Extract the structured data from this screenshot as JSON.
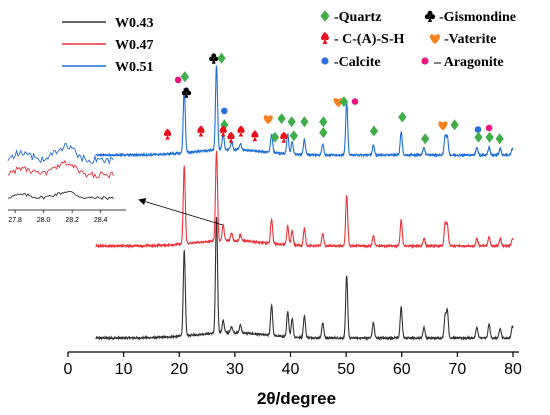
{
  "chart_data": {
    "type": "line",
    "title": "",
    "xlabel": "2θ/degree",
    "ylabel": "",
    "xlim": [
      0,
      80
    ],
    "x_ticks": [
      0,
      10,
      20,
      30,
      40,
      50,
      60,
      70,
      80
    ],
    "grid": false,
    "legend_placement": "top-left",
    "series": [
      {
        "name": "W0.43",
        "color": "#333333",
        "offset": 0,
        "peaks": [
          [
            20.9,
            0.55
          ],
          [
            26.7,
            0.75
          ],
          [
            27.9,
            0.08
          ],
          [
            29.4,
            0.04
          ],
          [
            31.0,
            0.05
          ],
          [
            36.6,
            0.2
          ],
          [
            39.5,
            0.16
          ],
          [
            40.3,
            0.12
          ],
          [
            42.5,
            0.14
          ],
          [
            45.8,
            0.1
          ],
          [
            50.1,
            0.4
          ],
          [
            54.9,
            0.1
          ],
          [
            59.9,
            0.2
          ],
          [
            64.0,
            0.07
          ],
          [
            67.8,
            0.14
          ],
          [
            68.2,
            0.17
          ],
          [
            73.5,
            0.07
          ],
          [
            75.7,
            0.09
          ],
          [
            77.7,
            0.06
          ],
          [
            79.9,
            0.08
          ]
        ]
      },
      {
        "name": "W0.47",
        "color": "#e8343a",
        "offset": 1,
        "peaks": [
          [
            20.9,
            0.5
          ],
          [
            26.7,
            0.58
          ],
          [
            27.9,
            0.1
          ],
          [
            29.4,
            0.05
          ],
          [
            31.0,
            0.04
          ],
          [
            36.6,
            0.16
          ],
          [
            39.5,
            0.12
          ],
          [
            40.3,
            0.09
          ],
          [
            42.5,
            0.11
          ],
          [
            45.8,
            0.08
          ],
          [
            50.1,
            0.33
          ],
          [
            54.9,
            0.07
          ],
          [
            59.9,
            0.17
          ],
          [
            64.0,
            0.05
          ],
          [
            67.8,
            0.14
          ],
          [
            68.2,
            0.13
          ],
          [
            73.5,
            0.05
          ],
          [
            75.7,
            0.06
          ],
          [
            77.7,
            0.05
          ],
          [
            79.9,
            0.05
          ]
        ]
      },
      {
        "name": "W0.51",
        "color": "#1f6fd6",
        "offset": 2,
        "peaks": [
          [
            20.9,
            0.42
          ],
          [
            26.7,
            0.55
          ],
          [
            27.9,
            0.1
          ],
          [
            29.4,
            0.05
          ],
          [
            31.0,
            0.04
          ],
          [
            36.6,
            0.12
          ],
          [
            39.5,
            0.13
          ],
          [
            40.3,
            0.08
          ],
          [
            42.5,
            0.1
          ],
          [
            45.8,
            0.07
          ],
          [
            50.1,
            0.34
          ],
          [
            54.9,
            0.06
          ],
          [
            59.9,
            0.15
          ],
          [
            64.0,
            0.05
          ],
          [
            67.8,
            0.12
          ],
          [
            68.2,
            0.11
          ],
          [
            73.5,
            0.05
          ],
          [
            75.7,
            0.05
          ],
          [
            77.7,
            0.04
          ],
          [
            79.9,
            0.04
          ]
        ]
      }
    ],
    "phase_legend": [
      {
        "symbol": "diamond",
        "color": "#3fae49",
        "label": "-Quartz"
      },
      {
        "symbol": "club",
        "color": "#000000",
        "label": "-Gismondine"
      },
      {
        "symbol": "spade",
        "color": "#e8111e",
        "label": "- C-(A)-S-H"
      },
      {
        "symbol": "heart",
        "color": "#f5821f",
        "label": "-Vaterite"
      },
      {
        "symbol": "circle",
        "color": "#2a6fdb",
        "label": "-Calcite"
      },
      {
        "symbol": "circle",
        "color": "#e8157f",
        "label": "– Aragonite"
      }
    ],
    "annotations": [
      {
        "symbol": "diamond",
        "x": 21.0,
        "level": 0.44
      },
      {
        "symbol": "circle-pink",
        "x": 19.8,
        "level": 0.42
      },
      {
        "symbol": "club",
        "x": 21.3,
        "level": 0.34
      },
      {
        "symbol": "club",
        "x": 26.2,
        "level": 0.56
      },
      {
        "symbol": "diamond",
        "x": 27.6,
        "level": 0.56
      },
      {
        "symbol": "circle-blue",
        "x": 28.1,
        "level": 0.22
      },
      {
        "symbol": "diamond",
        "x": 28.1,
        "level": 0.13
      },
      {
        "symbol": "spade",
        "x": 27.9,
        "level": 0.09
      },
      {
        "symbol": "spade",
        "x": 17.9,
        "level": 0.07
      },
      {
        "symbol": "spade",
        "x": 23.9,
        "level": 0.09
      },
      {
        "symbol": "spade",
        "x": 29.3,
        "level": 0.05
      },
      {
        "symbol": "spade",
        "x": 31.1,
        "level": 0.09
      },
      {
        "symbol": "spade",
        "x": 33.6,
        "level": 0.06
      },
      {
        "symbol": "heart",
        "x": 36.0,
        "level": 0.17
      },
      {
        "symbol": "diamond",
        "x": 37.2,
        "level": 0.05
      },
      {
        "symbol": "diamond",
        "x": 38.4,
        "level": 0.17
      },
      {
        "symbol": "spade",
        "x": 38.8,
        "level": 0.05
      },
      {
        "symbol": "diamond",
        "x": 40.2,
        "level": 0.15
      },
      {
        "symbol": "diamond",
        "x": 40.6,
        "level": 0.06
      },
      {
        "symbol": "diamond",
        "x": 42.5,
        "level": 0.15
      },
      {
        "symbol": "diamond",
        "x": 45.9,
        "level": 0.08
      },
      {
        "symbol": "diamond",
        "x": 45.9,
        "level": 0.15
      },
      {
        "symbol": "heart",
        "x": 48.6,
        "level": 0.28
      },
      {
        "symbol": "diamond",
        "x": 49.6,
        "level": 0.28
      },
      {
        "symbol": "circle-pink",
        "x": 51.6,
        "level": 0.28
      },
      {
        "symbol": "diamond",
        "x": 55.0,
        "level": 0.09
      },
      {
        "symbol": "diamond",
        "x": 60.1,
        "level": 0.18
      },
      {
        "symbol": "diamond",
        "x": 64.2,
        "level": 0.04
      },
      {
        "symbol": "heart",
        "x": 67.4,
        "level": 0.13
      },
      {
        "symbol": "diamond",
        "x": 69.5,
        "level": 0.13
      },
      {
        "symbol": "circle-blue",
        "x": 73.7,
        "level": 0.1
      },
      {
        "symbol": "circle-pink",
        "x": 75.7,
        "level": 0.11
      },
      {
        "symbol": "diamond",
        "x": 73.8,
        "level": 0.05
      },
      {
        "symbol": "diamond",
        "x": 75.8,
        "level": 0.05
      },
      {
        "symbol": "diamond",
        "x": 77.6,
        "level": 0.04
      }
    ],
    "inset": {
      "xlim": [
        27.75,
        28.55
      ],
      "x_ticks": [
        27.8,
        28.0,
        28.2,
        28.4
      ],
      "x_tick_labels": [
        "27.8",
        "28.0",
        "28.2",
        "28.4"
      ]
    }
  }
}
